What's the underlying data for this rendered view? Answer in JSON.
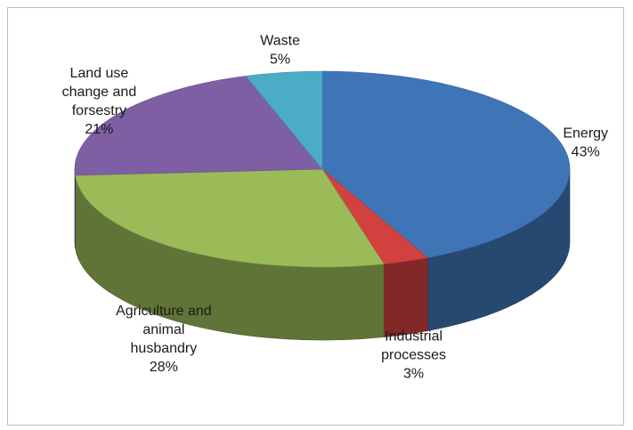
{
  "chart_data": {
    "type": "pie",
    "style": "3d",
    "slices": [
      {
        "name": "Energy",
        "value": 43,
        "value_label": "43%",
        "color": "#3F75B6",
        "label_lines": [
          "Energy"
        ]
      },
      {
        "name": "Industrial processes",
        "value": 3,
        "value_label": "3%",
        "color": "#D24040",
        "label_lines": [
          "Industrial",
          "processes"
        ]
      },
      {
        "name": "Agriculture and animal husbandry",
        "value": 28,
        "value_label": "28%",
        "color": "#9BBB59",
        "label_lines": [
          "Agriculture and",
          "animal",
          "husbandry"
        ]
      },
      {
        "name": "Land use change and forsestry",
        "value": 21,
        "value_label": "21%",
        "color": "#7E5FA3",
        "label_lines": [
          "Land use",
          "change and",
          "forsestry"
        ]
      },
      {
        "name": "Waste",
        "value": 5,
        "value_label": "5%",
        "color": "#4BACC6",
        "label_lines": [
          "Waste"
        ]
      }
    ],
    "legend": "none"
  }
}
